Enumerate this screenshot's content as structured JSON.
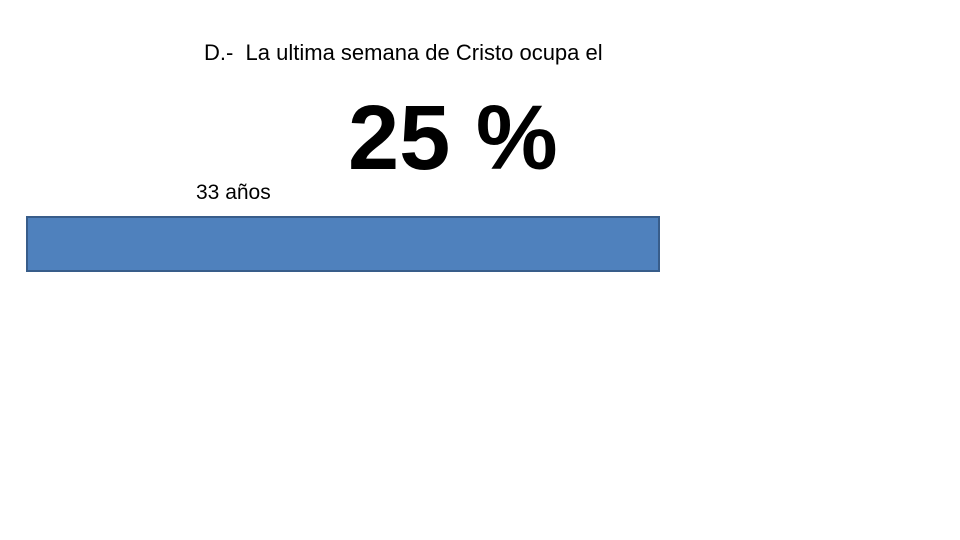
{
  "slide": {
    "title": "D.-  La ultima semana de Cristo ocupa el",
    "highlight": "25 %",
    "bar_label": "33 años"
  }
}
